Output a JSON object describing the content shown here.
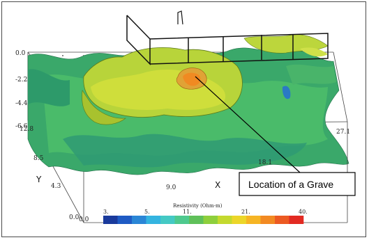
{
  "chart_data": {
    "type": "3d-isosurface",
    "axes": {
      "x": {
        "label": "X",
        "ticks": [
          "9.0",
          "18.1",
          "27.1"
        ]
      },
      "y": {
        "label": "Y",
        "ticks": [
          "0.0",
          "4.3",
          "8.5",
          "12.8"
        ]
      },
      "z": {
        "label": "",
        "ticks": [
          "0.0",
          "-2.2",
          "-4.4",
          "-6.6"
        ]
      },
      "origin_label": "0.0"
    },
    "colorbar": {
      "title": "Resistivity (Ohm-m)",
      "tick_labels": [
        "3.",
        "5.",
        "11.",
        "21.",
        "40."
      ],
      "colors": [
        "#1a3a9c",
        "#1f5bc4",
        "#2a86d6",
        "#34b4e0",
        "#44c9c4",
        "#4ec98e",
        "#5fc05a",
        "#8ecf3c",
        "#c4d92e",
        "#ecd629",
        "#f6b524",
        "#f28a22",
        "#ec5a22",
        "#e22a22"
      ]
    },
    "annotation": "Location of a Grave"
  }
}
